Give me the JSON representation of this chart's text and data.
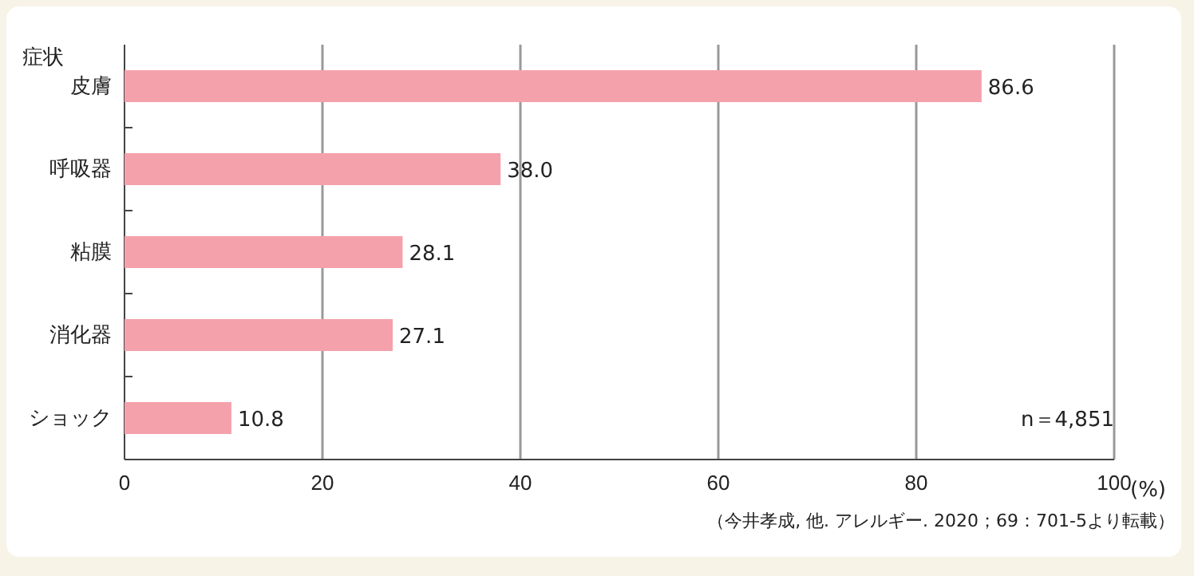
{
  "chart_data": {
    "type": "bar",
    "orientation": "horizontal",
    "ylabel": "症状",
    "xlabel": "(%)",
    "categories": [
      "皮膚",
      "呼吸器",
      "粘膜",
      "消化器",
      "ショック"
    ],
    "values": [
      86.6,
      38.0,
      28.1,
      27.1,
      10.8
    ],
    "value_labels": [
      "86.6",
      "38.0",
      "28.1",
      "27.1",
      "10.8"
    ],
    "color": "#f4a1ab",
    "xlim": [
      0,
      100
    ],
    "xticks": [
      0,
      20,
      40,
      60,
      80,
      100
    ],
    "grid": "x",
    "annotations": [
      "n＝4,851",
      "（今井孝成, 他. アレルギー. 2020；69：701-5より転載）"
    ]
  }
}
